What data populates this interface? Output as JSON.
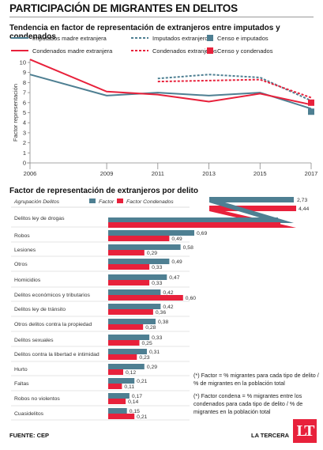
{
  "title": "PARTICIPACIÓN DE MIGRANTES EN DELITOS",
  "line_chart_title": "Tendencia en factor de representación de extranjeros entre imputados y condenados",
  "bar_chart_title": "Factor de representación de extranjeros por delito",
  "source": "FUENTE: CEP",
  "brand": "LA TERCERA",
  "logo_text": "LT",
  "notes": [
    "(*) Factor = % migrantes para cada tipo de delito / % de migrantes en la población total",
    "(*) Factor condena = % migrantes entre los condenados para cada tipo de delito / % de migrantes en la población total"
  ],
  "colors": {
    "teal": "#4e7f92",
    "red": "#e8213b"
  },
  "chart_data": [
    {
      "type": "line",
      "title": "Tendencia en factor de representación de extranjeros entre imputados y condenados",
      "ylabel": "Factor representación",
      "xlabel": "",
      "x": [
        2006,
        2009,
        2011,
        2013,
        2015,
        2017
      ],
      "xlim": [
        2006,
        2017
      ],
      "ylim": [
        0,
        10
      ],
      "yticks": [
        0,
        1,
        2,
        3,
        4,
        5,
        6,
        7,
        8,
        9,
        10
      ],
      "xticks": [
        2006,
        2009,
        2011,
        2013,
        2015,
        2017
      ],
      "legend": [
        {
          "name": "Imputados madre extranjera",
          "style": "solid",
          "color": "#4e7f92"
        },
        {
          "name": "Imputados extranjeros",
          "style": "dashed",
          "color": "#4e7f92"
        },
        {
          "name": "Censo e imputados",
          "style": "square",
          "color": "#4e7f92"
        },
        {
          "name": "Condenados madre extranjera",
          "style": "solid",
          "color": "#e8213b"
        },
        {
          "name": "Condenados extranjeros",
          "style": "dashed",
          "color": "#e8213b"
        },
        {
          "name": "Censo y condenados",
          "style": "square",
          "color": "#e8213b"
        }
      ],
      "series": [
        {
          "name": "Imputados madre extranjera",
          "color": "#4e7f92",
          "style": "solid",
          "points": [
            [
              2006,
              8.8
            ],
            [
              2009,
              6.7
            ],
            [
              2011,
              7.0
            ],
            [
              2013,
              6.7
            ],
            [
              2015,
              7.0
            ],
            [
              2017,
              5.4
            ]
          ]
        },
        {
          "name": "Condenados madre extranjera",
          "color": "#e8213b",
          "style": "solid",
          "points": [
            [
              2006,
              10.3
            ],
            [
              2009,
              7.1
            ],
            [
              2011,
              6.8
            ],
            [
              2013,
              6.1
            ],
            [
              2015,
              6.9
            ],
            [
              2017,
              5.8
            ]
          ]
        },
        {
          "name": "Imputados extranjeros",
          "color": "#4e7f92",
          "style": "dashed",
          "points": [
            [
              2011,
              8.4
            ],
            [
              2013,
              8.8
            ],
            [
              2015,
              8.5
            ],
            [
              2017,
              6.2
            ]
          ]
        },
        {
          "name": "Condenados extranjeros",
          "color": "#e8213b",
          "style": "dashed",
          "points": [
            [
              2011,
              8.1
            ],
            [
              2013,
              8.2
            ],
            [
              2015,
              8.3
            ],
            [
              2017,
              6.5
            ]
          ]
        },
        {
          "name": "Censo e imputados",
          "color": "#4e7f92",
          "style": "square",
          "points": [
            [
              2017,
              5.1
            ]
          ]
        },
        {
          "name": "Censo y condenados",
          "color": "#e8213b",
          "style": "square",
          "points": [
            [
              2017,
              6.0
            ]
          ]
        }
      ]
    },
    {
      "type": "bar",
      "title": "Factor de representación de extranjeros por delito",
      "category_header": "Agrupación Delitos",
      "categories": [
        "Delitos ley de drogas",
        "Robos",
        "Lesiones",
        "Otros",
        "Homicidios",
        "Delitos económicos y tributarios",
        "Delitos ley de tránsito",
        "Otros delitos contra la propiedad",
        "Delitos sexuales",
        "Delitos contra la libertad e intimidad",
        "Hurto",
        "Faltas",
        "Robos no violentos",
        "Cuasidelitos"
      ],
      "series": [
        {
          "name": "Factor",
          "color": "#4e7f92",
          "values": [
            2.73,
            0.69,
            0.58,
            0.49,
            0.47,
            0.42,
            0.42,
            0.38,
            0.33,
            0.31,
            0.29,
            0.21,
            0.17,
            0.15
          ],
          "labels": [
            "2,73",
            "0,69",
            "0,58",
            "0,49",
            "0,47",
            "0,42",
            "0,42",
            "0,38",
            "0,33",
            "0,31",
            "0,29",
            "0,21",
            "0,17",
            "0,15"
          ]
        },
        {
          "name": "Factor Condenados",
          "color": "#e8213b",
          "values": [
            4.44,
            0.49,
            0.29,
            0.33,
            0.33,
            0.6,
            0.36,
            0.28,
            0.25,
            0.23,
            0.12,
            0.11,
            0.14,
            0.21
          ],
          "labels": [
            "4,44",
            "0,49",
            "0,29",
            "0,33",
            "0,33",
            "0,60",
            "0,36",
            "0,28",
            "0,25",
            "0,23",
            "0,12",
            "0,11",
            "0,14",
            "0,21"
          ]
        }
      ]
    }
  ]
}
